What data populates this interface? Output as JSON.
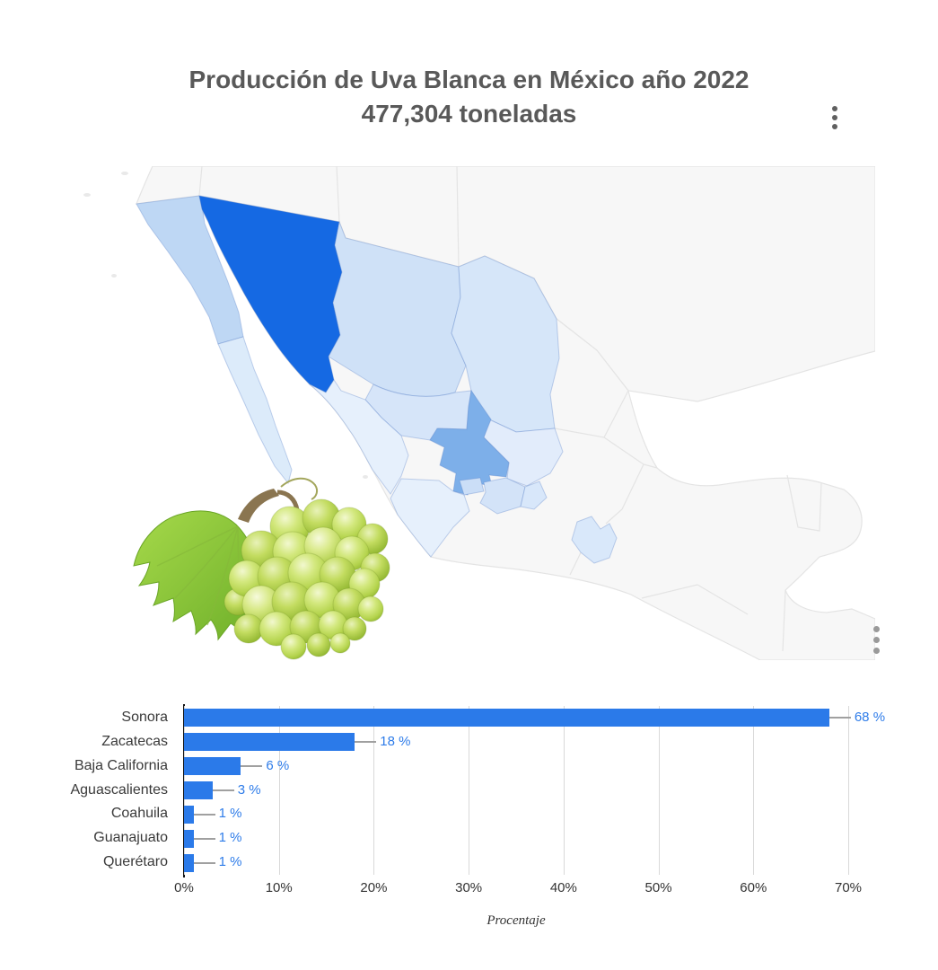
{
  "header": {
    "title_line1": "Producción de Uva Blanca en México año 2022",
    "title_line2": "477,304 toneladas",
    "title_color": "#595959",
    "menu_icon": "kebab-vertical"
  },
  "map": {
    "kind": "choropleth-mexico",
    "ocean_color": "#ffffff",
    "land_color": "#f7f7f7",
    "border_color": "#e4e4e4",
    "menu_icon": "kebab-vertical",
    "states": [
      {
        "id": "sonora",
        "name": "Sonora",
        "color": "#1569e3"
      },
      {
        "id": "zacatecas",
        "name": "Zacatecas",
        "color": "#7dafe9"
      },
      {
        "id": "baja-california",
        "name": "Baja California",
        "color": "#bed7f4"
      },
      {
        "id": "aguascalientes",
        "name": "Aguascalientes",
        "color": "#cbdef7"
      },
      {
        "id": "chihuahua",
        "name": "Chihuahua",
        "color": "#cfe1f7"
      },
      {
        "id": "coahuila",
        "name": "Coahuila",
        "color": "#d6e6f9"
      },
      {
        "id": "durango",
        "name": "Durango",
        "color": "#d6e5f9"
      },
      {
        "id": "guanajuato",
        "name": "Guanajuato",
        "color": "#d3e3f8"
      },
      {
        "id": "queretaro",
        "name": "Querétaro",
        "color": "#d8e7fa"
      },
      {
        "id": "san-luis-potosi",
        "name": "San Luis Potosí",
        "color": "#e2ecfb"
      },
      {
        "id": "sinaloa",
        "name": "Sinaloa",
        "color": "#e6f0fc"
      },
      {
        "id": "jalisco",
        "name": "Jalisco",
        "color": "#e6f0fc"
      },
      {
        "id": "puebla",
        "name": "Puebla",
        "color": "#d9e8fa"
      },
      {
        "id": "baja-california-sur",
        "name": "Baja California Sur",
        "color": "#dcebfa"
      }
    ]
  },
  "illustration": {
    "name": "green-grapes-image"
  },
  "chart_data": {
    "type": "bar",
    "orientation": "horizontal",
    "title": "Producción de Uva Blanca en México año 2022 — 477,304 toneladas",
    "categories": [
      "Sonora",
      "Zacatecas",
      "Baja California",
      "Aguascalientes",
      "Coahuila",
      "Guanajuato",
      "Querétaro"
    ],
    "values": [
      68,
      18,
      6,
      3,
      1,
      1,
      1
    ],
    "value_labels": [
      "68 %",
      "18 %",
      "6 %",
      "3 %",
      "1 %",
      "1 %",
      "1 %"
    ],
    "xlabel": "Procentaje",
    "ylabel": "",
    "xlim": [
      0,
      70
    ],
    "x_ticks": [
      "0%",
      "10%",
      "20%",
      "30%",
      "40%",
      "50%",
      "60%",
      "70%"
    ],
    "grid": true,
    "legend": null,
    "bar_color": "#2b7ae9",
    "value_label_color": "#2e7ce9",
    "gridline_color": "#d9d9d9",
    "axis_color": "#111111",
    "leader_line_color": "#a0a0a0"
  }
}
